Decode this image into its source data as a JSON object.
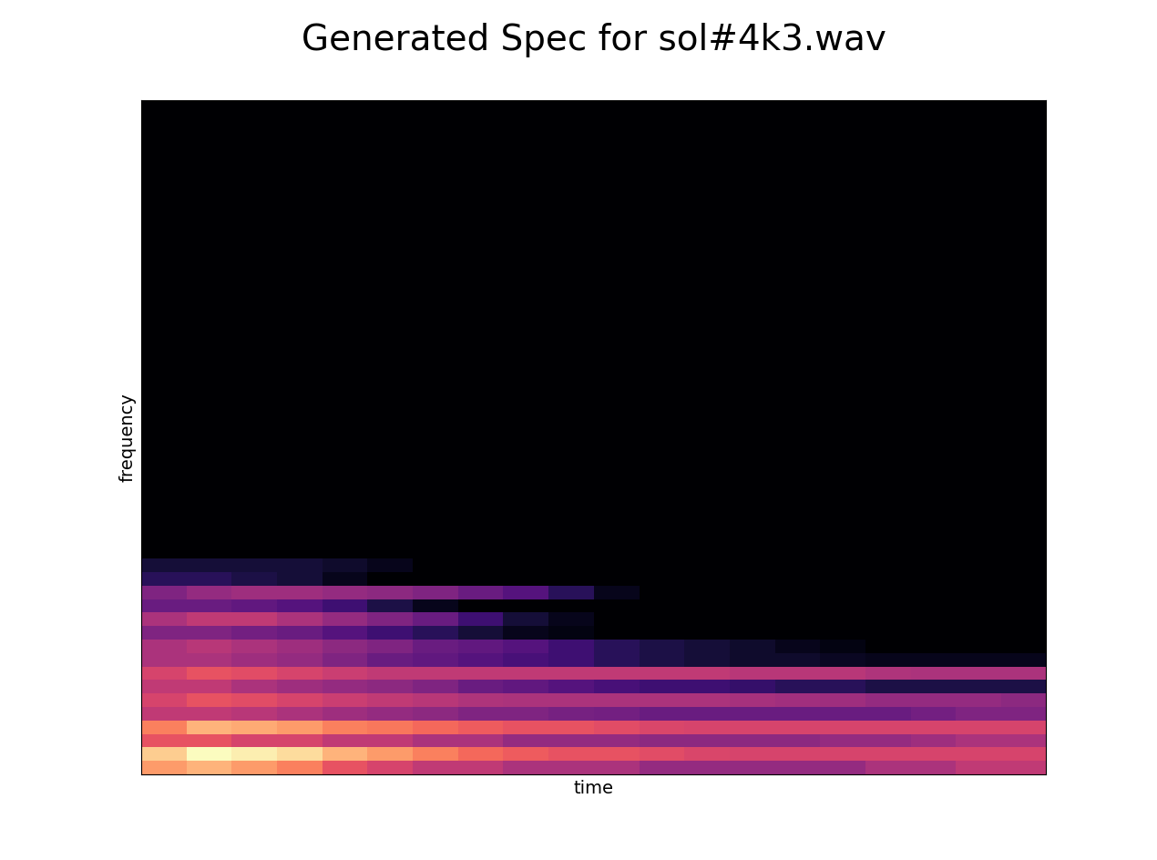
{
  "chart_data": {
    "type": "heatmap",
    "title": "Generated Spec for sol#4k3.wav",
    "x_label": "time",
    "y_label": "frequency",
    "tick_labels": false,
    "color": "magma",
    "cells": [
      [
        0.75,
        0.8,
        0.75,
        0.7,
        0.6,
        0.55,
        0.5,
        0.5,
        0.45,
        0.45,
        0.45,
        0.4,
        0.4,
        0.4,
        0.4,
        0.4,
        0.45,
        0.45,
        0.5,
        0.5
      ],
      [
        0.85,
        0.95,
        0.92,
        0.88,
        0.8,
        0.75,
        0.7,
        0.65,
        0.62,
        0.6,
        0.6,
        0.58,
        0.56,
        0.55,
        0.55,
        0.55,
        0.55,
        0.55,
        0.55,
        0.55
      ],
      [
        0.6,
        0.6,
        0.55,
        0.55,
        0.5,
        0.5,
        0.45,
        0.45,
        0.4,
        0.4,
        0.4,
        0.38,
        0.38,
        0.38,
        0.38,
        0.4,
        0.4,
        0.42,
        0.45,
        0.45
      ],
      [
        0.7,
        0.8,
        0.78,
        0.75,
        0.7,
        0.68,
        0.65,
        0.62,
        0.6,
        0.6,
        0.58,
        0.56,
        0.55,
        0.55,
        0.55,
        0.55,
        0.55,
        0.55,
        0.55,
        0.55
      ],
      [
        0.5,
        0.5,
        0.48,
        0.45,
        0.42,
        0.4,
        0.38,
        0.35,
        0.35,
        0.33,
        0.32,
        0.3,
        0.3,
        0.3,
        0.3,
        0.3,
        0.3,
        0.32,
        0.35,
        0.35
      ],
      [
        0.55,
        0.6,
        0.58,
        0.55,
        0.52,
        0.5,
        0.48,
        0.46,
        0.45,
        0.45,
        0.45,
        0.45,
        0.45,
        0.44,
        0.43,
        0.42,
        0.4,
        0.4,
        0.4,
        0.38
      ],
      [
        0.5,
        0.5,
        0.45,
        0.42,
        0.4,
        0.38,
        0.35,
        0.3,
        0.28,
        0.25,
        0.22,
        0.2,
        0.2,
        0.18,
        0.15,
        0.15,
        0.12,
        0.12,
        0.12,
        0.12
      ],
      [
        0.55,
        0.6,
        0.58,
        0.55,
        0.52,
        0.5,
        0.5,
        0.5,
        0.5,
        0.5,
        0.5,
        0.5,
        0.5,
        0.48,
        0.48,
        0.48,
        0.46,
        0.45,
        0.45,
        0.45
      ],
      [
        0.45,
        0.45,
        0.42,
        0.4,
        0.35,
        0.3,
        0.28,
        0.25,
        0.22,
        0.2,
        0.15,
        0.12,
        0.1,
        0.08,
        0.08,
        0.06,
        0.05,
        0.05,
        0.05,
        0.05
      ],
      [
        0.45,
        0.48,
        0.45,
        0.42,
        0.38,
        0.35,
        0.3,
        0.28,
        0.25,
        0.2,
        0.15,
        0.12,
        0.1,
        0.08,
        0.05,
        0.03,
        0,
        0,
        0,
        0
      ],
      [
        0.35,
        0.35,
        0.32,
        0.3,
        0.25,
        0.2,
        0.15,
        0.1,
        0.05,
        0.03,
        0,
        0,
        0,
        0,
        0,
        0,
        0,
        0,
        0,
        0
      ],
      [
        0.45,
        0.5,
        0.5,
        0.45,
        0.4,
        0.35,
        0.3,
        0.2,
        0.1,
        0.05,
        0,
        0,
        0,
        0,
        0,
        0,
        0,
        0,
        0,
        0
      ],
      [
        0.3,
        0.3,
        0.28,
        0.25,
        0.2,
        0.12,
        0.05,
        0,
        0,
        0,
        0,
        0,
        0,
        0,
        0,
        0,
        0,
        0,
        0,
        0
      ],
      [
        0.35,
        0.4,
        0.42,
        0.42,
        0.4,
        0.38,
        0.35,
        0.3,
        0.25,
        0.15,
        0.05,
        0,
        0,
        0,
        0,
        0,
        0,
        0,
        0,
        0
      ],
      [
        0.15,
        0.15,
        0.12,
        0.1,
        0.05,
        0,
        0,
        0,
        0,
        0,
        0,
        0,
        0,
        0,
        0,
        0,
        0,
        0,
        0,
        0
      ],
      [
        0.1,
        0.1,
        0.1,
        0.1,
        0.08,
        0.05,
        0,
        0,
        0,
        0,
        0,
        0,
        0,
        0,
        0,
        0,
        0,
        0,
        0,
        0
      ],
      [
        0,
        0,
        0,
        0,
        0,
        0,
        0,
        0,
        0,
        0,
        0,
        0,
        0,
        0,
        0,
        0,
        0,
        0,
        0,
        0
      ],
      [
        0,
        0,
        0,
        0,
        0,
        0,
        0,
        0,
        0,
        0,
        0,
        0,
        0,
        0,
        0,
        0,
        0,
        0,
        0,
        0
      ],
      [
        0,
        0,
        0,
        0,
        0,
        0,
        0,
        0,
        0,
        0,
        0,
        0,
        0,
        0,
        0,
        0,
        0,
        0,
        0,
        0
      ],
      [
        0,
        0,
        0,
        0,
        0,
        0,
        0,
        0,
        0,
        0,
        0,
        0,
        0,
        0,
        0,
        0,
        0,
        0,
        0,
        0
      ],
      [
        0,
        0,
        0,
        0,
        0,
        0,
        0,
        0,
        0,
        0,
        0,
        0,
        0,
        0,
        0,
        0,
        0,
        0,
        0,
        0
      ],
      [
        0,
        0,
        0,
        0,
        0,
        0,
        0,
        0,
        0,
        0,
        0,
        0,
        0,
        0,
        0,
        0,
        0,
        0,
        0,
        0
      ],
      [
        0,
        0,
        0,
        0,
        0,
        0,
        0,
        0,
        0,
        0,
        0,
        0,
        0,
        0,
        0,
        0,
        0,
        0,
        0,
        0
      ],
      [
        0,
        0,
        0,
        0,
        0,
        0,
        0,
        0,
        0,
        0,
        0,
        0,
        0,
        0,
        0,
        0,
        0,
        0,
        0,
        0
      ],
      [
        0,
        0,
        0,
        0,
        0,
        0,
        0,
        0,
        0,
        0,
        0,
        0,
        0,
        0,
        0,
        0,
        0,
        0,
        0,
        0
      ],
      [
        0,
        0,
        0,
        0,
        0,
        0,
        0,
        0,
        0,
        0,
        0,
        0,
        0,
        0,
        0,
        0,
        0,
        0,
        0,
        0
      ],
      [
        0,
        0,
        0,
        0,
        0,
        0,
        0,
        0,
        0,
        0,
        0,
        0,
        0,
        0,
        0,
        0,
        0,
        0,
        0,
        0
      ],
      [
        0,
        0,
        0,
        0,
        0,
        0,
        0,
        0,
        0,
        0,
        0,
        0,
        0,
        0,
        0,
        0,
        0,
        0,
        0,
        0
      ],
      [
        0,
        0,
        0,
        0,
        0,
        0,
        0,
        0,
        0,
        0,
        0,
        0,
        0,
        0,
        0,
        0,
        0,
        0,
        0,
        0
      ],
      [
        0,
        0,
        0,
        0,
        0,
        0,
        0,
        0,
        0,
        0,
        0,
        0,
        0,
        0,
        0,
        0,
        0,
        0,
        0,
        0
      ],
      [
        0,
        0,
        0,
        0,
        0,
        0,
        0,
        0,
        0,
        0,
        0,
        0,
        0,
        0,
        0,
        0,
        0,
        0,
        0,
        0
      ],
      [
        0,
        0,
        0,
        0,
        0,
        0,
        0,
        0,
        0,
        0,
        0,
        0,
        0,
        0,
        0,
        0,
        0,
        0,
        0,
        0
      ],
      [
        0,
        0,
        0,
        0,
        0,
        0,
        0,
        0,
        0,
        0,
        0,
        0,
        0,
        0,
        0,
        0,
        0,
        0,
        0,
        0
      ],
      [
        0,
        0,
        0,
        0,
        0,
        0,
        0,
        0,
        0,
        0,
        0,
        0,
        0,
        0,
        0,
        0,
        0,
        0,
        0,
        0
      ],
      [
        0,
        0,
        0,
        0,
        0,
        0,
        0,
        0,
        0,
        0,
        0,
        0,
        0,
        0,
        0,
        0,
        0,
        0,
        0,
        0
      ],
      [
        0,
        0,
        0,
        0,
        0,
        0,
        0,
        0,
        0,
        0,
        0,
        0,
        0,
        0,
        0,
        0,
        0,
        0,
        0,
        0
      ],
      [
        0,
        0,
        0,
        0,
        0,
        0,
        0,
        0,
        0,
        0,
        0,
        0,
        0,
        0,
        0,
        0,
        0,
        0,
        0,
        0
      ],
      [
        0,
        0,
        0,
        0,
        0,
        0,
        0,
        0,
        0,
        0,
        0,
        0,
        0,
        0,
        0,
        0,
        0,
        0,
        0,
        0
      ],
      [
        0,
        0,
        0,
        0,
        0,
        0,
        0,
        0,
        0,
        0,
        0,
        0,
        0,
        0,
        0,
        0,
        0,
        0,
        0,
        0
      ],
      [
        0,
        0,
        0,
        0,
        0,
        0,
        0,
        0,
        0,
        0,
        0,
        0,
        0,
        0,
        0,
        0,
        0,
        0,
        0,
        0
      ],
      [
        0,
        0,
        0,
        0,
        0,
        0,
        0,
        0,
        0,
        0,
        0,
        0,
        0,
        0,
        0,
        0,
        0,
        0,
        0,
        0
      ],
      [
        0,
        0,
        0,
        0,
        0,
        0,
        0,
        0,
        0,
        0,
        0,
        0,
        0,
        0,
        0,
        0,
        0,
        0,
        0,
        0
      ],
      [
        0,
        0,
        0,
        0,
        0,
        0,
        0,
        0,
        0,
        0,
        0,
        0,
        0,
        0,
        0,
        0,
        0,
        0,
        0,
        0
      ],
      [
        0,
        0,
        0,
        0,
        0,
        0,
        0,
        0,
        0,
        0,
        0,
        0,
        0,
        0,
        0,
        0,
        0,
        0,
        0,
        0
      ],
      [
        0,
        0,
        0,
        0,
        0,
        0,
        0,
        0,
        0,
        0,
        0,
        0,
        0,
        0,
        0,
        0,
        0,
        0,
        0,
        0
      ],
      [
        0,
        0,
        0,
        0,
        0,
        0,
        0,
        0,
        0,
        0,
        0,
        0,
        0,
        0,
        0,
        0,
        0,
        0,
        0,
        0
      ],
      [
        0,
        0,
        0,
        0,
        0,
        0,
        0,
        0,
        0,
        0,
        0,
        0,
        0,
        0,
        0,
        0,
        0,
        0,
        0,
        0
      ],
      [
        0,
        0,
        0,
        0,
        0,
        0,
        0,
        0,
        0,
        0,
        0,
        0,
        0,
        0,
        0,
        0,
        0,
        0,
        0,
        0
      ],
      [
        0,
        0,
        0,
        0,
        0,
        0,
        0,
        0,
        0,
        0,
        0,
        0,
        0,
        0,
        0,
        0,
        0,
        0,
        0,
        0
      ],
      [
        0,
        0,
        0,
        0,
        0,
        0,
        0,
        0,
        0,
        0,
        0,
        0,
        0,
        0,
        0,
        0,
        0,
        0,
        0,
        0
      ]
    ]
  }
}
